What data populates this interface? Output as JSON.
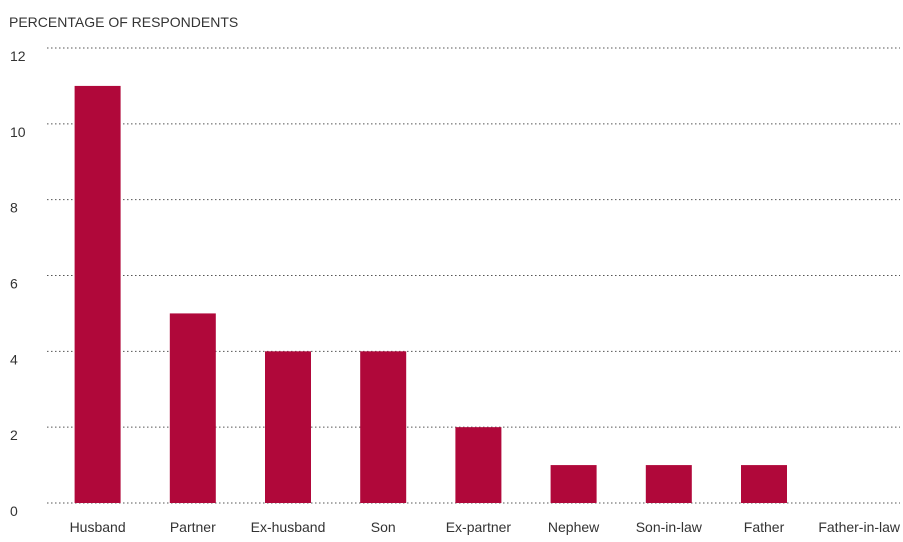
{
  "chart_data": {
    "type": "bar",
    "ylabel": "PERCENTAGE OF RESPONDENTS",
    "categories": [
      "Husband",
      "Partner",
      "Ex-husband",
      "Son",
      "Ex-partner",
      "Nephew",
      "Son-in-law",
      "Father",
      "Father-in-law"
    ],
    "values": [
      11,
      5,
      4,
      4,
      2,
      1,
      1,
      1,
      0
    ],
    "ylim": [
      0,
      12
    ],
    "yticks": [
      "0",
      "2",
      "4",
      "6",
      "8",
      "10",
      "12"
    ],
    "grid": true,
    "bar_color": "#b0083a",
    "grid_color": "#555555"
  }
}
